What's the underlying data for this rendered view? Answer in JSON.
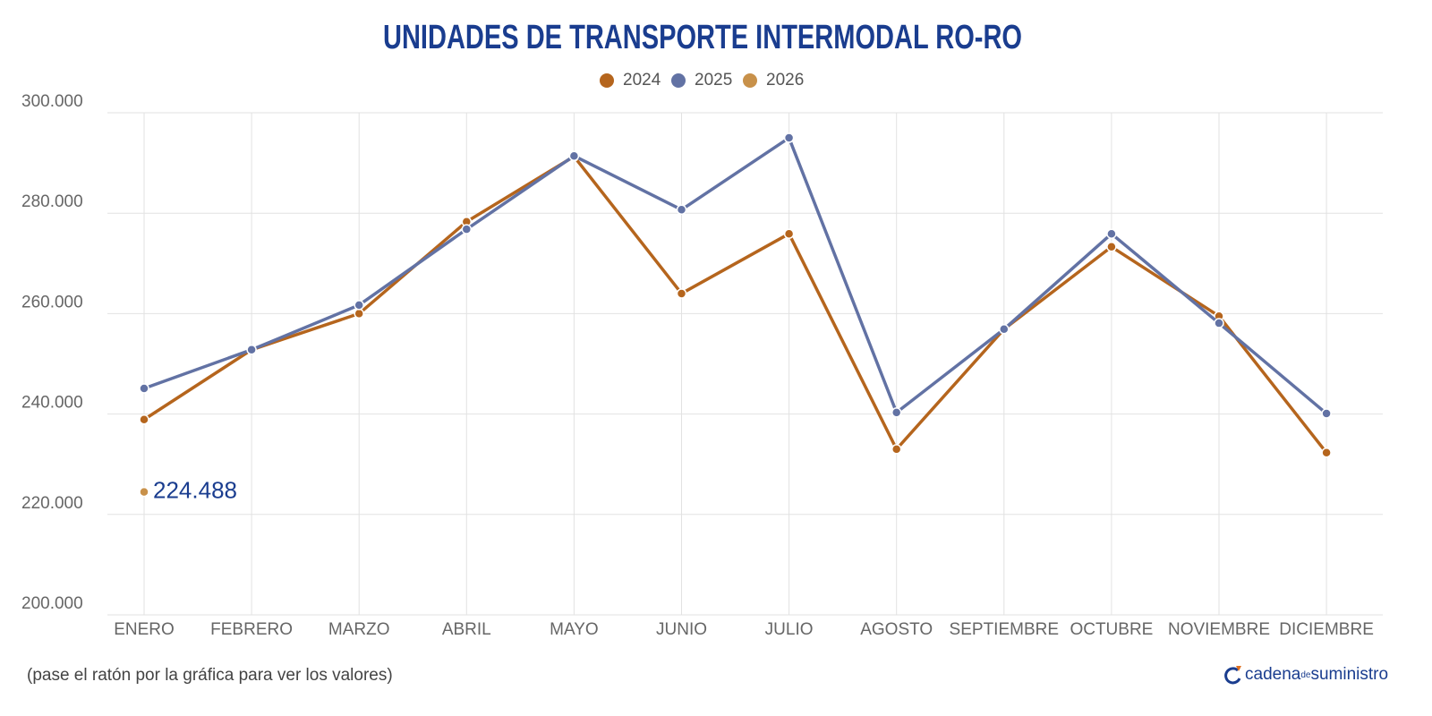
{
  "chart_data": {
    "type": "line",
    "title": "UNIDADES DE TRANSPORTE INTERMODAL RO-RO",
    "categories": [
      "ENERO",
      "FEBRERO",
      "MARZO",
      "ABRIL",
      "MAYO",
      "JUNIO",
      "JULIO",
      "AGOSTO",
      "SEPTIEMBRE",
      "OCTUBRE",
      "NOVIEMBRE",
      "DICIEMBRE"
    ],
    "series": [
      {
        "name": "2024",
        "color": "#b5651d",
        "values": [
          238900,
          252800,
          260000,
          278300,
          291300,
          264000,
          275900,
          233000,
          256900,
          273300,
          259500,
          232300
        ]
      },
      {
        "name": "2025",
        "color": "#6272a4",
        "values": [
          245100,
          252800,
          261700,
          276800,
          291400,
          280700,
          295000,
          240300,
          256900,
          275900,
          258100,
          240100
        ]
      },
      {
        "name": "2026",
        "color": "#c8914a",
        "values": [
          224488,
          null,
          null,
          null,
          null,
          null,
          null,
          null,
          null,
          null,
          null,
          null
        ],
        "value_labels": [
          "224.488",
          null,
          null,
          null,
          null,
          null,
          null,
          null,
          null,
          null,
          null,
          null
        ]
      }
    ],
    "ylim": [
      200000,
      300000
    ],
    "yticks": [
      {
        "value": 200000,
        "label": "200.000"
      },
      {
        "value": 220000,
        "label": "220.000"
      },
      {
        "value": 240000,
        "label": "240.000"
      },
      {
        "value": 260000,
        "label": "260.000"
      },
      {
        "value": 280000,
        "label": "280.000"
      },
      {
        "value": 300000,
        "label": "300.000"
      }
    ],
    "grid": true,
    "legend": "top"
  },
  "footer": {
    "note": "(pase el ratón por la gráfica para ver los valores)",
    "brand": "cadena",
    "brand_small": "de",
    "brand_end": "suministro"
  }
}
